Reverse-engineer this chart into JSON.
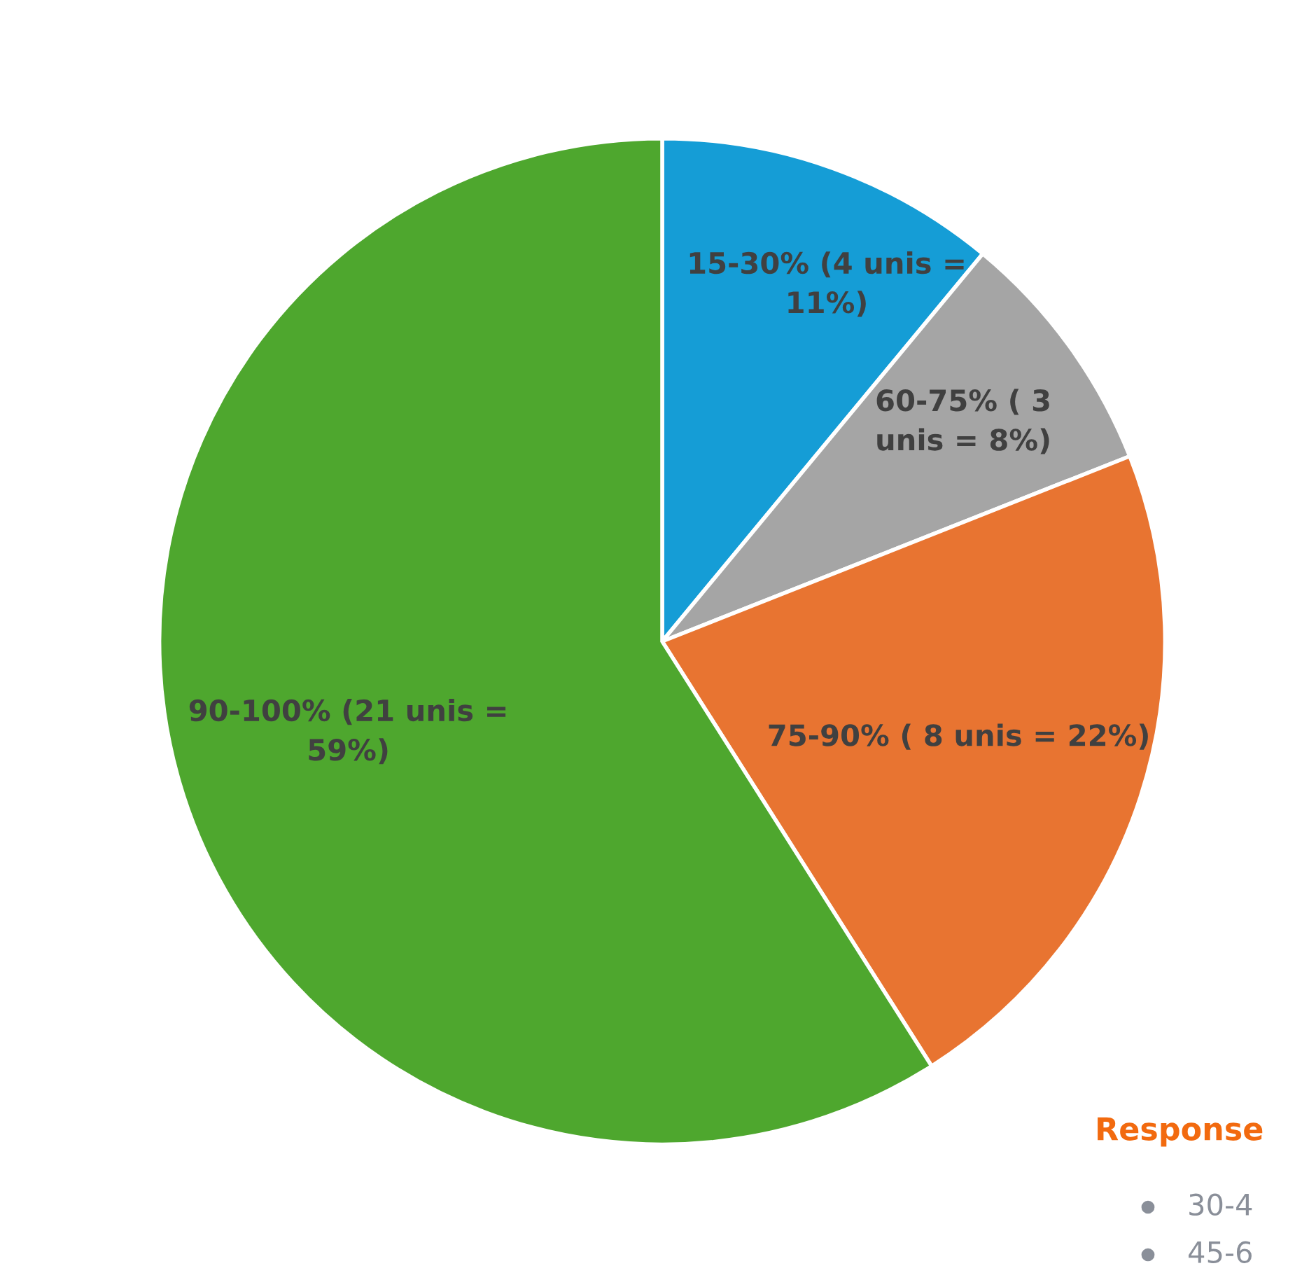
{
  "chart_data": {
    "type": "pie",
    "categories": [
      "15-30%",
      "60-75%",
      "75-90%",
      "90-100%"
    ],
    "values": [
      11,
      8,
      22,
      59
    ],
    "colors": [
      "#159dd6",
      "#a5a5a5",
      "#e87431",
      "#4ea72e"
    ],
    "value_labels": [
      " (4 unis =\n11%)",
      " ( 3\nunis = 8%)",
      " ( 8 unis = 22%)",
      " (21 unis =\n59%)"
    ],
    "annotations": [
      "Response",
      "30-4",
      "45-6"
    ]
  }
}
